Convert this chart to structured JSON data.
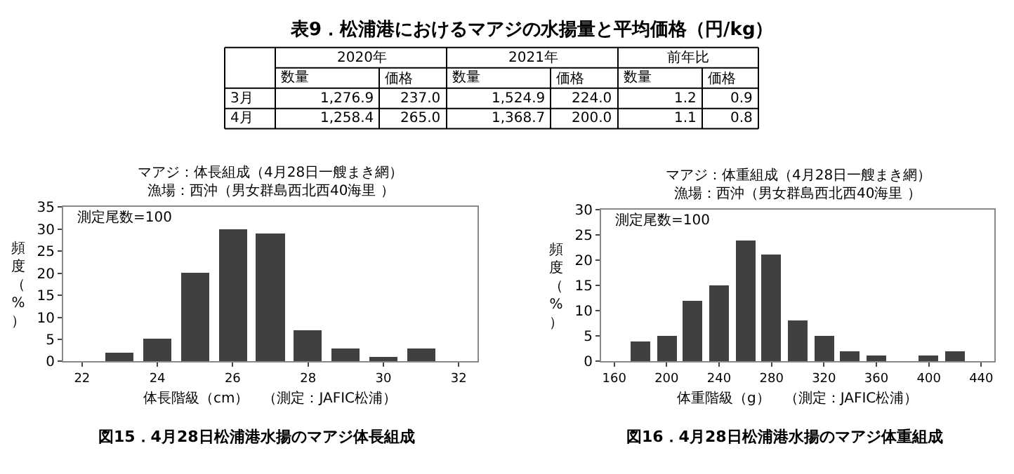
{
  "chart_data": [
    {
      "type": "other",
      "title": "表9．松浦港におけるマアジの水揚量と平均価格（円/kg）",
      "annotations": [
        "2020年",
        "2021年",
        "前年比",
        "数量",
        "価格",
        "数量",
        "価格",
        "数量",
        "価格",
        "3月",
        "1,276.9",
        "237.0",
        "1,524.9",
        "224.0",
        "1.2",
        "0.9",
        "4月",
        "1,258.4",
        "265.0",
        "1,368.7",
        "200.0",
        "1.1",
        "0.8"
      ]
    },
    {
      "type": "histogram",
      "title": "マアジ：体長組成（4月28日一艘まき網）",
      "subtitle": "漁場：西沖（男女群島西北西40海里 ）",
      "xlabel": "体長階級（cm）　（測定：JAFIC松浦）",
      "ylabel": "頻度（%）",
      "bins": [
        21.5,
        22.5,
        23.5,
        24.5,
        25.5,
        26.5,
        27.5,
        28.5,
        29.5,
        30.5,
        31.5,
        32.5
      ],
      "values": [
        0,
        2,
        5,
        20,
        30,
        29,
        7,
        3,
        1,
        3,
        0
      ],
      "color": "#404040",
      "xlim": [
        21.5,
        32.5
      ],
      "xticks": [
        22,
        24,
        26,
        28,
        30,
        32
      ],
      "ylim": [
        0,
        35
      ],
      "yticks": [
        0,
        5,
        10,
        15,
        20,
        25,
        30,
        35
      ],
      "annotations": [
        "測定尾数=100",
        "図15．4月28日松浦港水揚のマアジ体長組成"
      ]
    },
    {
      "type": "histogram",
      "title": "マアジ：体重組成（4月28日一艘まき網）",
      "subtitle": "漁場：西沖（男女群島西北西40海里 ）",
      "xlabel": "体重階級（g）　（測定：JAFIC松浦）",
      "ylabel": "頻度（%）",
      "bins": [
        150,
        170,
        190,
        210,
        230,
        250,
        270,
        290,
        310,
        330,
        350,
        370,
        390,
        410,
        430,
        450
      ],
      "values": [
        0,
        4,
        5,
        12,
        15,
        24,
        21,
        8,
        5,
        2,
        1,
        0,
        1,
        2,
        0
      ],
      "color": "#404040",
      "xlim": [
        150,
        450
      ],
      "xticks": [
        160,
        200,
        240,
        280,
        320,
        360,
        400,
        440
      ],
      "ylim": [
        0,
        30
      ],
      "yticks": [
        0,
        5,
        10,
        15,
        20,
        25,
        30
      ],
      "annotations": [
        "測定尾数=100",
        "図16．4月28日松浦港水揚のマアジ体重組成"
      ]
    }
  ]
}
